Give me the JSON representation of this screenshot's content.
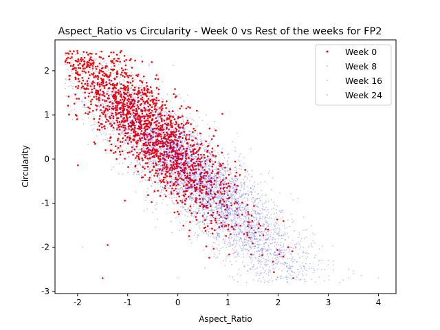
{
  "chart_data": {
    "type": "scatter",
    "title": "Aspect_Ratio vs Circularity - Week 0 vs Rest of the weeks for FP2",
    "xlabel": "Aspect_Ratio",
    "ylabel": "Circularity",
    "xlim": [
      -2.45,
      4.35
    ],
    "ylim": [
      -3.05,
      2.7
    ],
    "xticks": [
      -2,
      -1,
      0,
      1,
      2,
      3,
      4
    ],
    "yticks": [
      -3,
      -2,
      -1,
      0,
      1,
      2
    ],
    "grid": false,
    "legend_position": "top-right",
    "series": [
      {
        "name": "Week 0",
        "color": "#ff0000",
        "opacity": 1.0,
        "representative_points": [
          [
            -2.0,
            2.4
          ],
          [
            -1.8,
            2.2
          ],
          [
            -1.6,
            2.1
          ],
          [
            -1.5,
            1.9
          ],
          [
            -1.3,
            1.6
          ],
          [
            -1.2,
            1.3
          ],
          [
            -1.0,
            1.1
          ],
          [
            -0.8,
            0.9
          ],
          [
            -0.5,
            0.6
          ],
          [
            -0.2,
            0.3
          ],
          [
            0.0,
            0.1
          ],
          [
            0.3,
            -0.2
          ],
          [
            0.6,
            -0.5
          ],
          [
            1.0,
            -0.9
          ],
          [
            1.4,
            -1.2
          ],
          [
            1.8,
            -1.6
          ],
          [
            2.2,
            -2.0
          ],
          [
            2.3,
            -2.7
          ],
          [
            -1.5,
            -2.7
          ],
          [
            -1.4,
            -1.95
          ]
        ],
        "x_center": -0.6,
        "y_center": 0.7,
        "x_spread": 0.9,
        "y_spread": 0.55,
        "trend_slope": -1.05,
        "count_estimate": 2000
      },
      {
        "name": "Week 8",
        "color": "#0000ff",
        "opacity": 0.25,
        "representative_points": [
          [
            -2.1,
            0.9
          ],
          [
            -1.5,
            1.2
          ],
          [
            -1.0,
            0.8
          ],
          [
            -0.5,
            0.5
          ],
          [
            0.0,
            0.0
          ],
          [
            0.5,
            -0.4
          ],
          [
            1.0,
            -0.8
          ],
          [
            1.5,
            -1.3
          ],
          [
            2.0,
            -1.7
          ],
          [
            2.5,
            -2.1
          ],
          [
            3.0,
            -2.4
          ],
          [
            3.5,
            -2.6
          ],
          [
            4.0,
            -2.7
          ],
          [
            0.0,
            -2.7
          ],
          [
            -1.9,
            -2.0
          ]
        ],
        "x_center": 0.3,
        "y_center": -0.35,
        "x_spread": 1.15,
        "y_spread": 0.55,
        "trend_slope": -1.0,
        "count_estimate": 1700
      },
      {
        "name": "Week 16",
        "color": "#0000ff",
        "opacity": 0.25,
        "representative_points": [
          [
            -1.8,
            1.6
          ],
          [
            -1.2,
            1.1
          ],
          [
            -0.6,
            0.6
          ],
          [
            0.0,
            0.1
          ],
          [
            0.6,
            -0.4
          ],
          [
            1.2,
            -0.9
          ],
          [
            1.8,
            -1.5
          ],
          [
            2.4,
            -1.9
          ],
          [
            3.0,
            -2.3
          ],
          [
            3.4,
            -2.7
          ]
        ],
        "x_center": 0.35,
        "y_center": -0.4,
        "x_spread": 1.15,
        "y_spread": 0.55,
        "trend_slope": -1.0,
        "count_estimate": 1700
      },
      {
        "name": "Week 24",
        "color": "#0000ff",
        "opacity": 0.25,
        "representative_points": [
          [
            -1.7,
            1.5
          ],
          [
            -1.1,
            1.0
          ],
          [
            -0.5,
            0.5
          ],
          [
            0.1,
            0.0
          ],
          [
            0.7,
            -0.5
          ],
          [
            1.3,
            -1.0
          ],
          [
            1.9,
            -1.6
          ],
          [
            2.5,
            -2.0
          ],
          [
            3.1,
            -2.4
          ],
          [
            3.3,
            -2.75
          ]
        ],
        "x_center": 0.4,
        "y_center": -0.45,
        "x_spread": 1.15,
        "y_spread": 0.55,
        "trend_slope": -1.0,
        "count_estimate": 1700
      }
    ]
  }
}
